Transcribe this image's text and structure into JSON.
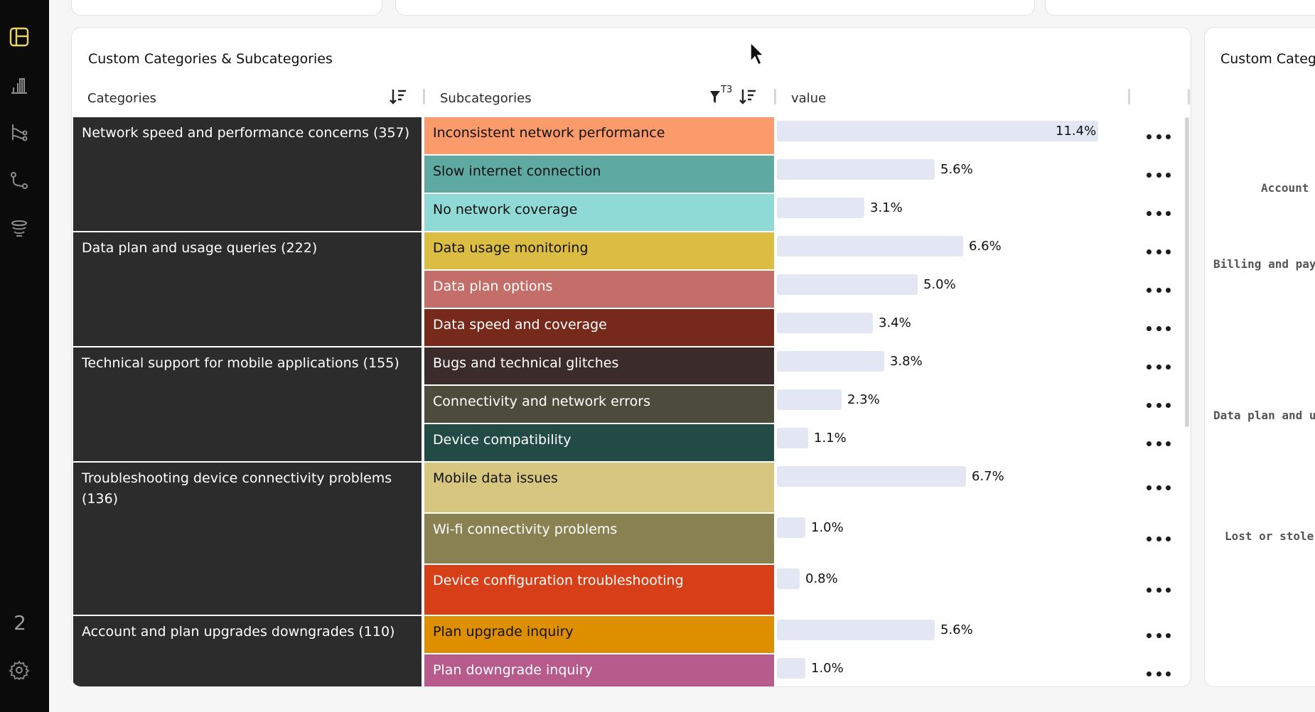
{
  "rail": {
    "items": [
      {
        "icon": "dashboard-icon",
        "active": true
      },
      {
        "icon": "bar-chart-icon"
      },
      {
        "icon": "branch-icon"
      },
      {
        "icon": "route-icon"
      },
      {
        "icon": "database-icon"
      }
    ],
    "number": "2",
    "settings_icon": "gear-icon"
  },
  "card": {
    "title": "Custom Categories & Subcategories",
    "columns": {
      "categories": "Categories",
      "subcategories": "Subcategories",
      "filter_badge": "T3",
      "value": "value"
    },
    "categories": [
      {
        "label": "Network speed and performance concerns (357)"
      },
      {
        "label": "Data plan and usage queries (222)"
      },
      {
        "label": "Technical support for mobile applications (155)"
      },
      {
        "label": "Troubleshooting device connectivity problems (136)"
      },
      {
        "label": "Account and plan upgrades downgrades (110)"
      }
    ],
    "rows": [
      {
        "sub": "Inconsistent network performance",
        "value": 11.4,
        "label": "11.4%",
        "color": "#fb9a6b",
        "text_color": "#111111"
      },
      {
        "sub": "Slow internet connection",
        "value": 5.6,
        "label": "5.6%",
        "color": "#5ea9a1",
        "text_color": "#111111"
      },
      {
        "sub": "No network coverage",
        "value": 3.1,
        "label": "3.1%",
        "color": "#8fdad6",
        "text_color": "#111111"
      },
      {
        "sub": "Data usage monitoring",
        "value": 6.6,
        "label": "6.6%",
        "color": "#dcbd43",
        "text_color": "#111111"
      },
      {
        "sub": "Data plan options",
        "value": 5.0,
        "label": "5.0%",
        "color": "#c46e69",
        "text_color": "#ffffff"
      },
      {
        "sub": "Data speed and coverage",
        "value": 3.4,
        "label": "3.4%",
        "color": "#772a1b",
        "text_color": "#ffffff"
      },
      {
        "sub": "Bugs and technical glitches",
        "value": 3.8,
        "label": "3.8%",
        "color": "#3c2b2b",
        "text_color": "#ffffff"
      },
      {
        "sub": "Connectivity and network errors",
        "value": 2.3,
        "label": "2.3%",
        "color": "#4d4b3c",
        "text_color": "#ffffff"
      },
      {
        "sub": "Device compatibility",
        "value": 1.1,
        "label": "1.1%",
        "color": "#234b45",
        "text_color": "#ffffff"
      },
      {
        "sub": "Mobile data issues",
        "value": 6.7,
        "label": "6.7%",
        "color": "#d6c67f",
        "text_color": "#111111"
      },
      {
        "sub": "Wi-fi connectivity problems",
        "value": 1.0,
        "label": "1.0%",
        "color": "#8a8152",
        "text_color": "#ffffff"
      },
      {
        "sub": "Device configuration troubleshooting",
        "value": 0.8,
        "label": "0.8%",
        "color": "#d63f17",
        "text_color": "#ffffff"
      },
      {
        "sub": "Plan upgrade inquiry",
        "value": 5.6,
        "label": "5.6%",
        "color": "#de8f00",
        "text_color": "#111111"
      },
      {
        "sub": "Plan downgrade inquiry",
        "value": 1.0,
        "label": "1.0%",
        "color": "#b75b8c",
        "text_color": "#ffffff"
      }
    ]
  },
  "card2": {
    "title": "Custom Categ",
    "labels": [
      "Account",
      "Billing and pay",
      "Data plan and u",
      "Lost or stole"
    ]
  }
}
